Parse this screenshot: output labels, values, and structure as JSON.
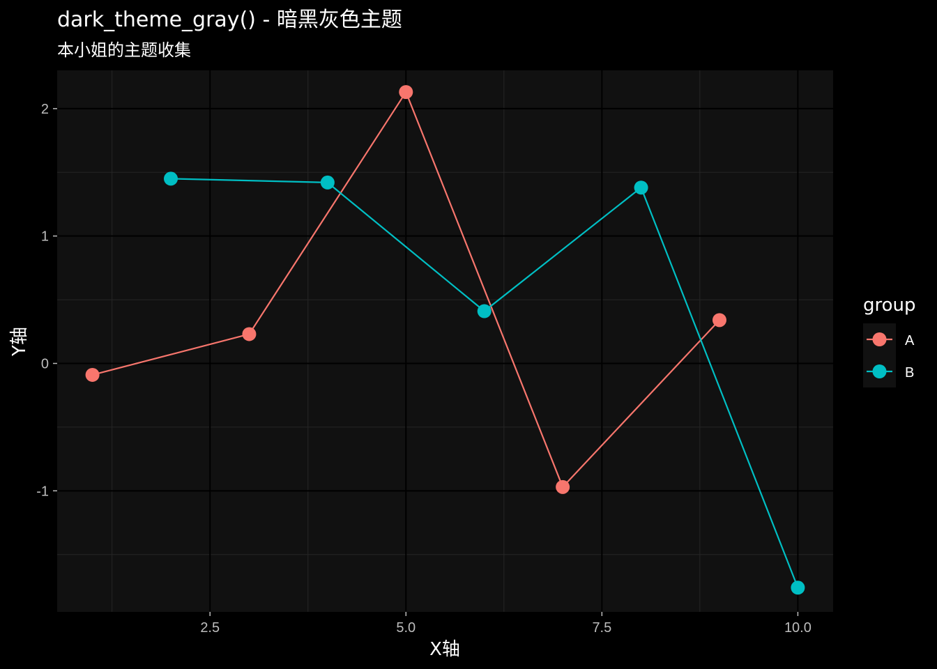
{
  "colors": {
    "page_background": "#000000",
    "panel_background": "#111111",
    "grid_major": "#000000",
    "grid_minor": "#262626",
    "text": "#ffffff",
    "tick_text": "#bdbdbd",
    "legend_key_background": "#111111"
  },
  "chart_data": {
    "type": "line",
    "title": "dark_theme_gray() - 暗黑灰色主题",
    "subtitle": "本小姐的主题收集",
    "xlabel": "X轴",
    "ylabel": "Y轴",
    "xlim": [
      0.55,
      10.45
    ],
    "ylim": [
      -1.95,
      2.3
    ],
    "x_ticks": [
      2.5,
      5.0,
      7.5,
      10.0
    ],
    "x_tick_labels": [
      "2.5",
      "5.0",
      "7.5",
      "10.0"
    ],
    "y_ticks": [
      -1,
      0,
      1,
      2
    ],
    "y_tick_labels": [
      "-1",
      "0",
      "1",
      "2"
    ],
    "x_minor_ticks": [
      1.25,
      3.75,
      6.25,
      8.75
    ],
    "y_minor_ticks": [
      -1.5,
      -0.5,
      0.5,
      1.5
    ],
    "grid": true,
    "legend": {
      "title": "group",
      "position": "right"
    },
    "series": [
      {
        "name": "A",
        "color": "#F8766D",
        "x": [
          1,
          3,
          5,
          7,
          9
        ],
        "y": [
          -0.09,
          0.23,
          2.13,
          -0.97,
          0.34
        ]
      },
      {
        "name": "B",
        "color": "#00BFC4",
        "x": [
          2,
          4,
          6,
          8,
          10
        ],
        "y": [
          1.45,
          1.42,
          0.41,
          1.38,
          -1.76
        ]
      }
    ]
  }
}
